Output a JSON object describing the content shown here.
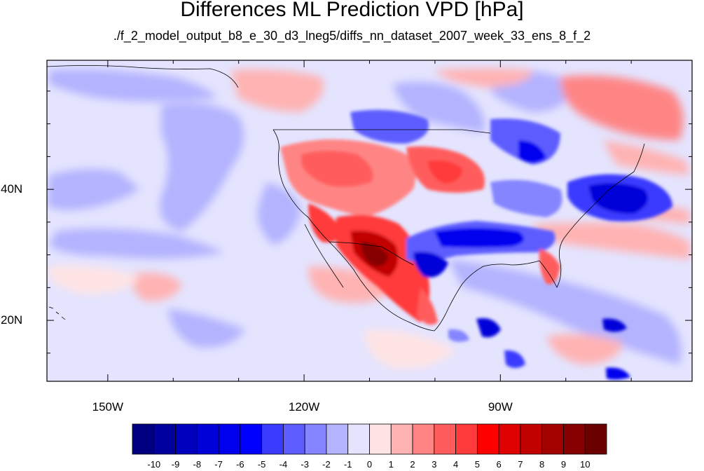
{
  "title": "Differences ML Prediction VPD [hPa]",
  "subtitle": "./f_2_model_output_b8_e_30_d3_lneg5/diffs_nn_dataset_2007_week_33_ens_8_f_2",
  "map": {
    "projection": "cylindrical equidistant",
    "lon_range": [
      -159.3,
      -60.7
    ],
    "lat_range": [
      10.7,
      59.7
    ],
    "lon_ticks": [
      {
        "value": -150,
        "label": "150W"
      },
      {
        "value": -120,
        "label": "120W"
      },
      {
        "value": -90,
        "label": "90W"
      }
    ],
    "lat_ticks": [
      {
        "value": 40,
        "label": "40N"
      },
      {
        "value": 20,
        "label": "20N"
      }
    ],
    "field": "VPD difference",
    "units": "hPa"
  },
  "colorbar": {
    "labels": [
      "-10",
      "-9",
      "-8",
      "-7",
      "-6",
      "-5",
      "-4",
      "-3",
      "-2",
      "-1",
      "0",
      "1",
      "2",
      "3",
      "4",
      "5",
      "6",
      "7",
      "8",
      "9",
      "10"
    ],
    "colors": [
      "#000080",
      "#00009f",
      "#0000be",
      "#0000d9",
      "#0000ef",
      "#0000ff",
      "#3b3bff",
      "#5d5dff",
      "#8585ff",
      "#b3b3ff",
      "#e4e4ff",
      "#ffe4e4",
      "#ffb3b3",
      "#ff8585",
      "#ff5d5d",
      "#ff3b3b",
      "#ff0000",
      "#df0000",
      "#c10000",
      "#a30000",
      "#860000",
      "#6a0000"
    ]
  }
}
